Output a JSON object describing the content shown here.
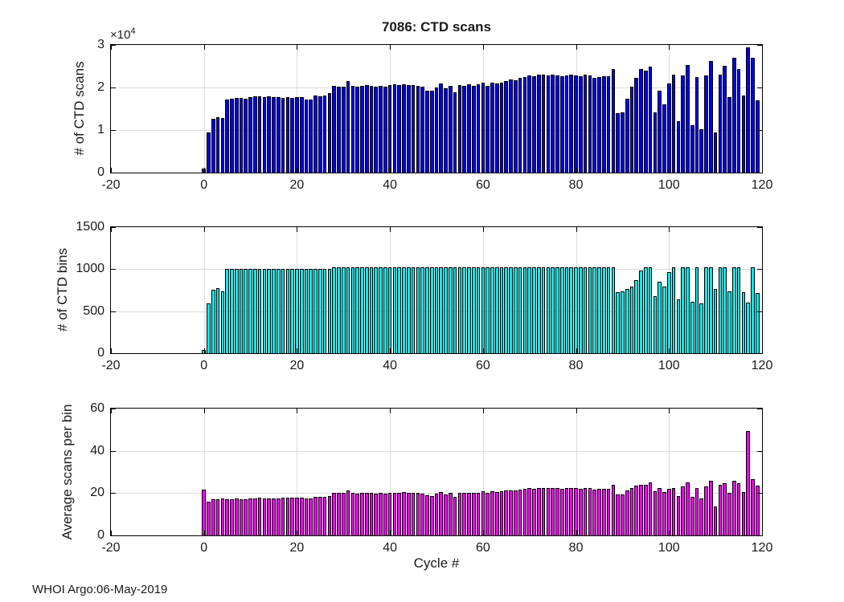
{
  "figure_title": "7086: CTD scans",
  "xlabel": "Cycle #",
  "footer_text": "WHOI Argo:06-May-2019",
  "colors": {
    "scans_bar": "#0000f0",
    "bins_bar": "#00efef",
    "avg_bar": "#ff00ff",
    "bar_edge": "#000000",
    "grid": "#dcdcdc",
    "axis": "#000000",
    "text": "#1a1a1a",
    "background": "#ffffff"
  },
  "x_axis": {
    "label": "Cycle #",
    "min": -20,
    "max": 120,
    "ticks": [
      -20,
      0,
      20,
      40,
      60,
      80,
      100,
      120
    ],
    "tick_labels": [
      "-20",
      "0",
      "20",
      "40",
      "60",
      "80",
      "100",
      "120"
    ]
  },
  "chart_data": [
    {
      "type": "bar",
      "name": "ctd-scans",
      "title": "7086: CTD scans",
      "ylabel": "# of CTD scans",
      "ylim": [
        0,
        30000
      ],
      "yticks": [
        0,
        10000,
        20000,
        30000
      ],
      "ytick_labels": [
        "0",
        "1",
        "2",
        "3"
      ],
      "exponent": {
        "base": "×10",
        "power": "4"
      },
      "bar_color": "#0000f0",
      "cycle_start": 0,
      "values": [
        1000,
        9500,
        12700,
        13100,
        12800,
        17100,
        17400,
        17600,
        17500,
        17400,
        17700,
        17900,
        18000,
        17800,
        17900,
        17800,
        17700,
        17600,
        17700,
        17600,
        17700,
        17800,
        17100,
        17200,
        18200,
        17900,
        18100,
        18700,
        20400,
        20200,
        20100,
        21600,
        20400,
        20200,
        20400,
        20600,
        20400,
        20200,
        20400,
        20200,
        20600,
        20700,
        20500,
        20800,
        20600,
        20500,
        20400,
        20200,
        19300,
        19200,
        20000,
        20900,
        19800,
        20400,
        18800,
        20600,
        20400,
        20700,
        20400,
        20700,
        21200,
        20400,
        21200,
        21000,
        21200,
        21500,
        21800,
        21700,
        22200,
        22400,
        22800,
        22600,
        23000,
        23100,
        22800,
        23000,
        22800,
        22600,
        22800,
        23000,
        22800,
        22600,
        23000,
        22800,
        22200,
        22500,
        22600,
        22700,
        24400,
        14000,
        14100,
        17300,
        20100,
        22200,
        24300,
        24000,
        25000,
        14200,
        19300,
        16100,
        21000,
        23100,
        12000,
        22800,
        25300,
        11100,
        22500,
        10200,
        22800,
        26200,
        9500,
        23000,
        25100,
        17800,
        27000,
        24400,
        18100,
        29500,
        27000,
        17000
      ]
    },
    {
      "type": "bar",
      "name": "ctd-bins",
      "ylabel": "# of CTD bins",
      "ylim": [
        0,
        1500
      ],
      "yticks": [
        0,
        500,
        1000,
        1500
      ],
      "ytick_labels": [
        "0",
        "500",
        "1000",
        "1500"
      ],
      "bar_color": "#00efef",
      "cycle_start": 0,
      "values": [
        40,
        590,
        755,
        770,
        740,
        1005,
        1005,
        1005,
        1005,
        1005,
        1005,
        1005,
        1005,
        1005,
        1005,
        1005,
        1005,
        1005,
        1005,
        1005,
        1005,
        1005,
        1005,
        1005,
        1005,
        1005,
        1005,
        1005,
        1025,
        1025,
        1025,
        1025,
        1025,
        1025,
        1025,
        1025,
        1025,
        1025,
        1025,
        1025,
        1025,
        1025,
        1025,
        1025,
        1025,
        1025,
        1025,
        1025,
        1025,
        1025,
        1025,
        1025,
        1025,
        1025,
        1025,
        1025,
        1025,
        1025,
        1025,
        1025,
        1025,
        1025,
        1025,
        1025,
        1025,
        1025,
        1025,
        1025,
        1025,
        1025,
        1025,
        1025,
        1025,
        1025,
        1025,
        1025,
        1025,
        1025,
        1025,
        1025,
        1025,
        1025,
        1025,
        1025,
        1025,
        1025,
        1025,
        1025,
        1025,
        730,
        740,
        765,
        795,
        870,
        985,
        1025,
        1025,
        680,
        850,
        790,
        965,
        1025,
        640,
        1025,
        1025,
        615,
        1025,
        595,
        1025,
        1025,
        760,
        1025,
        1025,
        740,
        1025,
        1025,
        725,
        600,
        1025,
        720
      ]
    },
    {
      "type": "bar",
      "name": "avg-scans-per-bin",
      "ylabel": "Average scans per bin",
      "ylim": [
        0,
        60
      ],
      "yticks": [
        0,
        20,
        40,
        60
      ],
      "ytick_labels": [
        "0",
        "20",
        "40",
        "60"
      ],
      "bar_color": "#ff00ff",
      "cycle_start": 0,
      "values": [
        21.5,
        16.0,
        17.0,
        17.2,
        17.4,
        17.0,
        17.1,
        17.3,
        17.2,
        17.1,
        17.4,
        17.6,
        17.7,
        17.5,
        17.6,
        17.5,
        17.6,
        17.9,
        17.8,
        17.9,
        17.8,
        17.9,
        17.4,
        17.5,
        18.3,
        18.1,
        18.2,
        18.7,
        20.3,
        20.1,
        20.0,
        21.1,
        20.0,
        19.8,
        20.0,
        20.2,
        20.0,
        19.8,
        20.0,
        19.8,
        20.2,
        20.3,
        20.1,
        20.4,
        20.2,
        20.1,
        20.0,
        19.8,
        18.9,
        18.8,
        19.6,
        20.5,
        19.4,
        20.0,
        18.4,
        20.2,
        20.0,
        20.3,
        20.0,
        20.3,
        20.8,
        20.0,
        20.8,
        20.6,
        20.8,
        21.1,
        21.4,
        21.3,
        21.8,
        22.0,
        22.3,
        22.1,
        22.5,
        22.6,
        22.3,
        22.5,
        22.3,
        22.1,
        22.3,
        22.5,
        22.3,
        22.1,
        22.5,
        22.3,
        21.7,
        22.0,
        22.1,
        22.2,
        23.9,
        19.5,
        19.3,
        21.3,
        22.5,
        23.5,
        23.8,
        23.8,
        25.0,
        21.0,
        22.3,
        20.5,
        22.0,
        22.5,
        18.8,
        23.2,
        25.0,
        18.2,
        22.3,
        17.5,
        23.2,
        25.8,
        13.5,
        23.8,
        24.5,
        20.0,
        25.8,
        24.7,
        20.5,
        49.5,
        26.4,
        23.6
      ]
    }
  ]
}
